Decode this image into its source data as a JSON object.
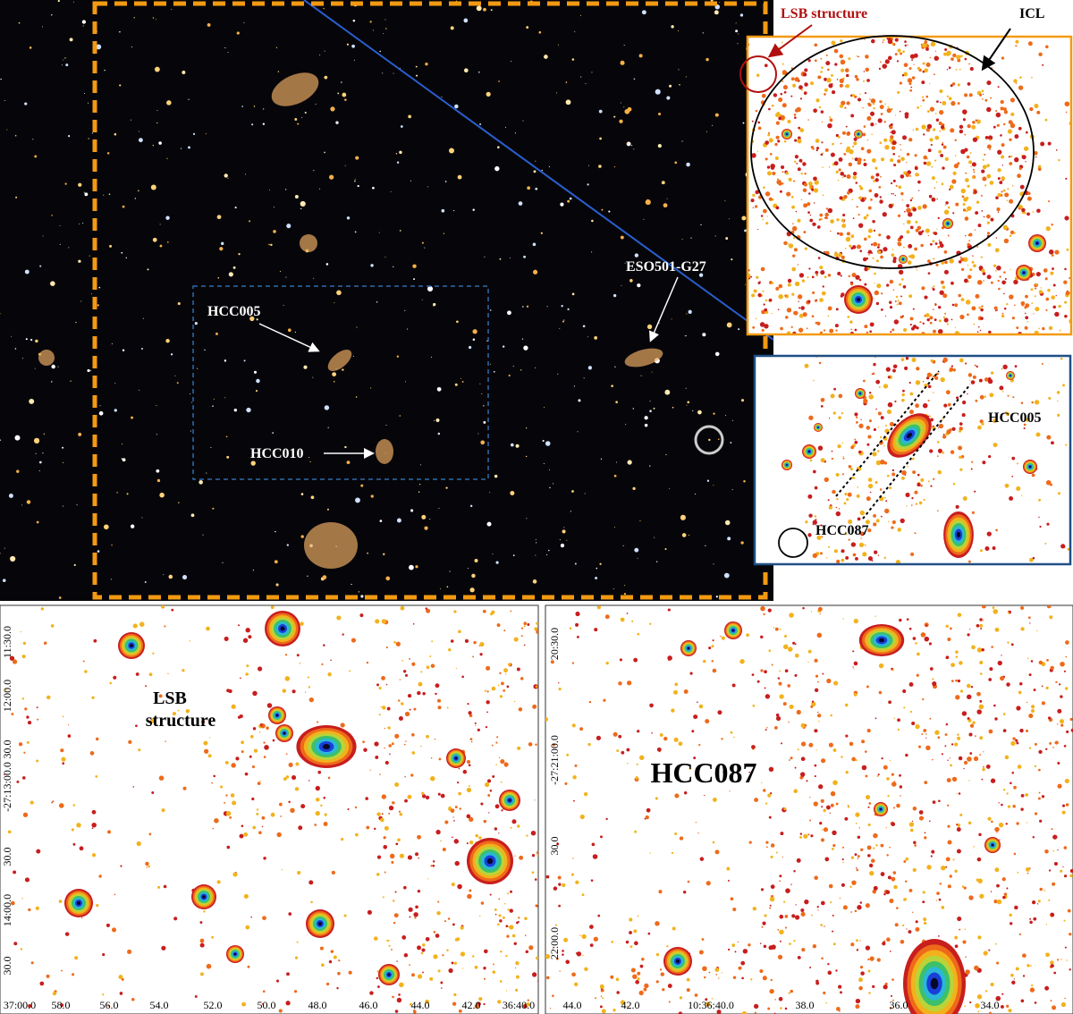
{
  "main_image": {
    "annotations": [
      "HCC005",
      "HCC010",
      "ESO501-G27"
    ]
  },
  "icl_inset": {
    "labels": [
      "LSB structure",
      "ICL"
    ]
  },
  "hcc005_inset": {
    "labels": [
      "HCC005",
      "HCC087"
    ]
  },
  "lsb_panel": {
    "label": [
      "LSB",
      "structure"
    ],
    "y_ticks": [
      "11:30.0",
      "12:00.0",
      "30.0",
      "-27:13:00.0",
      "30.0",
      "14:00.0",
      "30.0"
    ],
    "x_ticks": [
      "37:00.0",
      "58.0",
      "56.0",
      "54.0",
      "52.0",
      "50.0",
      "48.0",
      "46.0",
      "44.0",
      "42.0",
      "36:40.0"
    ]
  },
  "hcc087_panel": {
    "label": "HCC087",
    "y_ticks": [
      "20:30.0",
      "-27:21:00.0",
      "30.0",
      "22:00.0"
    ],
    "x_ticks": [
      "44.0",
      "42.0",
      "10:36:40.0",
      "38.0",
      "36.0",
      "34.0"
    ]
  }
}
